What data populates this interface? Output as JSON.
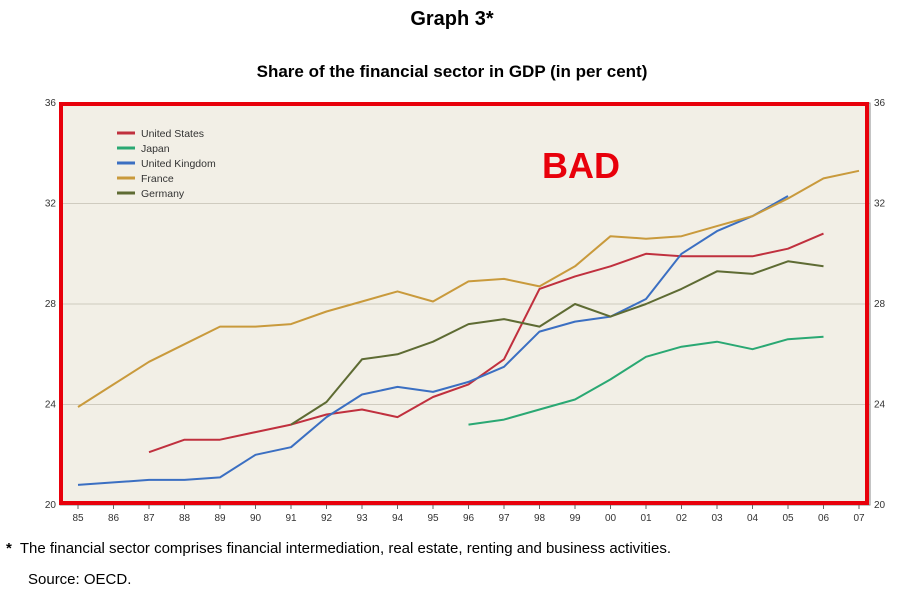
{
  "header": {
    "graph_label": "Graph 3*",
    "title": "Share of the financial sector in GDP (in per cent)"
  },
  "annotation": {
    "text": "BAD",
    "color": "#e8000b"
  },
  "footnote": {
    "star": "*",
    "text": "The financial sector comprises financial intermediation, real estate, renting and business activities."
  },
  "source": "Source: OECD.",
  "colors": {
    "plot_background": "#f2efe6",
    "border_highlight": "#e8000b"
  },
  "chart_data": {
    "type": "line",
    "title": "Share of the financial sector in GDP (in per cent)",
    "x": [
      "85",
      "86",
      "87",
      "88",
      "89",
      "90",
      "91",
      "92",
      "93",
      "94",
      "95",
      "96",
      "97",
      "98",
      "99",
      "00",
      "01",
      "02",
      "03",
      "04",
      "05",
      "06",
      "07"
    ],
    "ylim": [
      20,
      36
    ],
    "yticks": [
      20,
      24,
      28,
      32,
      36
    ],
    "grid": true,
    "legend_position": "top-left",
    "series": [
      {
        "name": "United States",
        "color": "#c0303e",
        "values": [
          null,
          null,
          22.1,
          22.6,
          22.6,
          22.9,
          23.2,
          23.6,
          23.8,
          23.5,
          24.3,
          24.8,
          25.8,
          28.6,
          29.1,
          29.5,
          30.0,
          29.9,
          29.9,
          29.9,
          30.2,
          30.8,
          null
        ]
      },
      {
        "name": "Japan",
        "color": "#2aa873",
        "values": [
          null,
          null,
          null,
          null,
          null,
          null,
          null,
          null,
          null,
          null,
          null,
          23.2,
          23.4,
          23.8,
          24.2,
          25.0,
          25.9,
          26.3,
          26.5,
          26.2,
          26.6,
          26.7,
          null
        ]
      },
      {
        "name": "United Kingdom",
        "color": "#3b6fc2",
        "values": [
          20.8,
          20.9,
          21.0,
          21.0,
          21.1,
          22.0,
          22.3,
          23.5,
          24.4,
          24.7,
          24.5,
          24.9,
          25.5,
          26.9,
          27.3,
          27.5,
          28.2,
          30.0,
          30.9,
          31.5,
          32.3,
          null,
          null
        ]
      },
      {
        "name": "France",
        "color": "#c99a3c",
        "values": [
          23.9,
          24.8,
          25.7,
          26.4,
          27.1,
          27.1,
          27.2,
          27.7,
          28.1,
          28.5,
          28.1,
          28.9,
          29.0,
          28.7,
          29.5,
          30.7,
          30.6,
          30.7,
          31.1,
          31.5,
          32.2,
          33.0,
          33.3
        ]
      },
      {
        "name": "Germany",
        "color": "#5e6b33",
        "values": [
          null,
          null,
          null,
          null,
          null,
          null,
          23.2,
          24.1,
          25.8,
          26.0,
          26.5,
          27.2,
          27.4,
          27.1,
          28.0,
          27.5,
          28.0,
          28.6,
          29.3,
          29.2,
          29.7,
          29.5,
          null
        ]
      }
    ]
  }
}
